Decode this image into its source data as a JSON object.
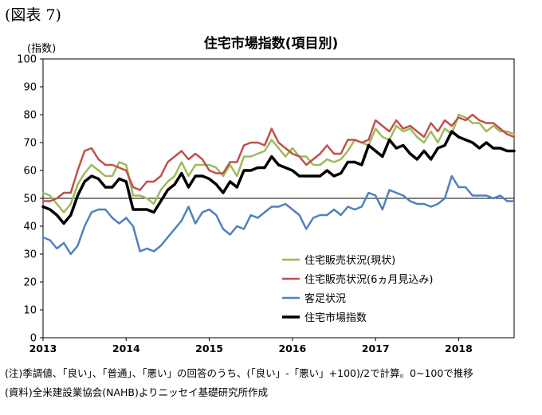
{
  "figure_label": "(図表 7)",
  "notes": {
    "note": "(注)季調値、「良い」、「普通」、「悪い」の回答のうち、(「良い」-「悪い」+100)/2で計算。0~100で推移",
    "source": "(資料)全米建設業協会(NAHB)よりニッセイ基礎研究所作成"
  },
  "chart_data": {
    "type": "line",
    "title": "住宅市場指数(項目別)",
    "ylabel": "(指数)",
    "xlabel": "",
    "ylim": [
      0,
      100
    ],
    "yticks": [
      0,
      10,
      20,
      30,
      40,
      50,
      60,
      70,
      80,
      90,
      100
    ],
    "xlim": [
      2013,
      2018.667
    ],
    "xticks": [
      2013,
      2014,
      2015,
      2016,
      2017,
      2018
    ],
    "reference_line": 50,
    "grid": false,
    "legend_position": "lower-right",
    "x_start": "2013-01",
    "frequency": "monthly",
    "series": [
      {
        "name": "住宅販売状況(現状)",
        "color": "#9bbb59",
        "width": 2.5,
        "values": [
          52,
          51,
          48,
          45,
          48,
          55,
          59,
          62,
          60,
          58,
          58,
          63,
          62,
          51,
          51,
          50,
          48,
          53,
          56,
          58,
          63,
          58,
          62,
          62,
          62,
          61,
          58,
          62,
          58,
          65,
          65,
          66,
          67,
          71,
          68,
          65,
          68,
          65,
          65,
          62,
          62,
          64,
          63,
          64,
          67,
          71,
          70,
          69,
          75,
          72,
          71,
          76,
          74,
          75,
          72,
          70,
          74,
          70,
          75,
          73,
          80,
          79,
          77,
          77,
          74,
          76,
          74,
          74,
          73
        ]
      },
      {
        "name": "住宅販売状況(6ヵ月見込み)",
        "color": "#c0504d",
        "width": 2.5,
        "values": [
          49,
          49,
          50,
          52,
          52,
          60,
          67,
          68,
          64,
          62,
          62,
          61,
          60,
          54,
          53,
          56,
          56,
          58,
          63,
          65,
          67,
          64,
          66,
          64,
          60,
          59,
          59,
          63,
          63,
          69,
          70,
          70,
          69,
          75,
          70,
          68,
          66,
          65,
          62,
          64,
          66,
          69,
          66,
          66,
          71,
          71,
          70,
          71,
          78,
          76,
          74,
          78,
          75,
          76,
          74,
          72,
          77,
          74,
          78,
          76,
          79,
          78,
          80,
          78,
          77,
          77,
          75,
          73,
          72
        ]
      },
      {
        "name": "客足状況",
        "color": "#4f81bd",
        "width": 2.5,
        "values": [
          36,
          35,
          32,
          34,
          30,
          33,
          40,
          45,
          46,
          46,
          43,
          41,
          43,
          40,
          31,
          32,
          31,
          33,
          36,
          39,
          42,
          47,
          41,
          45,
          46,
          44,
          39,
          37,
          40,
          39,
          44,
          43,
          45,
          47,
          47,
          48,
          46,
          44,
          39,
          43,
          44,
          44,
          46,
          44,
          47,
          46,
          47,
          52,
          51,
          46,
          53,
          52,
          51,
          49,
          48,
          48,
          47,
          48,
          50,
          58,
          54,
          54,
          51,
          51,
          51,
          50,
          51,
          49,
          49
        ]
      },
      {
        "name": "住宅市場指数",
        "color": "#000000",
        "width": 3.5,
        "values": [
          47,
          46,
          44,
          41,
          44,
          51,
          56,
          58,
          57,
          54,
          54,
          57,
          56,
          46,
          46,
          46,
          45,
          49,
          53,
          55,
          59,
          54,
          58,
          58,
          57,
          55,
          52,
          56,
          54,
          60,
          60,
          61,
          61,
          65,
          62,
          61,
          60,
          58,
          58,
          58,
          58,
          60,
          58,
          59,
          63,
          63,
          62,
          69,
          67,
          65,
          71,
          68,
          69,
          66,
          64,
          67,
          64,
          68,
          69,
          74,
          72,
          71,
          70,
          68,
          70,
          68,
          68,
          67,
          67
        ]
      }
    ]
  }
}
